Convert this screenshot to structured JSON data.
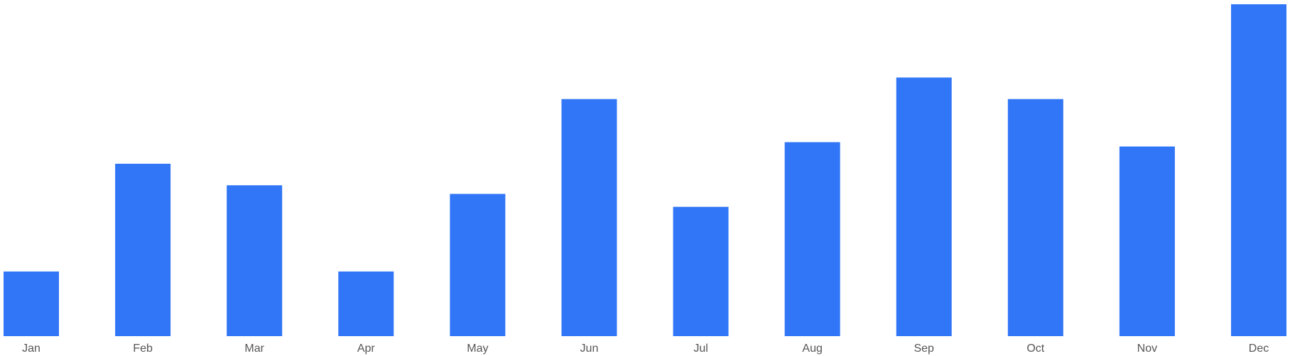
{
  "chart_data": {
    "type": "bar",
    "categories": [
      "Jan",
      "Feb",
      "Mar",
      "Apr",
      "May",
      "Jun",
      "Jul",
      "Aug",
      "Sep",
      "Oct",
      "Nov",
      "Dec"
    ],
    "values": [
      15,
      40,
      35,
      15,
      33,
      55,
      30,
      45,
      60,
      55,
      44,
      77
    ],
    "title": "",
    "xlabel": "",
    "ylabel": "",
    "ylim": [
      0,
      77
    ],
    "grid": false,
    "legend": "none",
    "bar_color": "#3176f6",
    "label_color": "#555555"
  }
}
